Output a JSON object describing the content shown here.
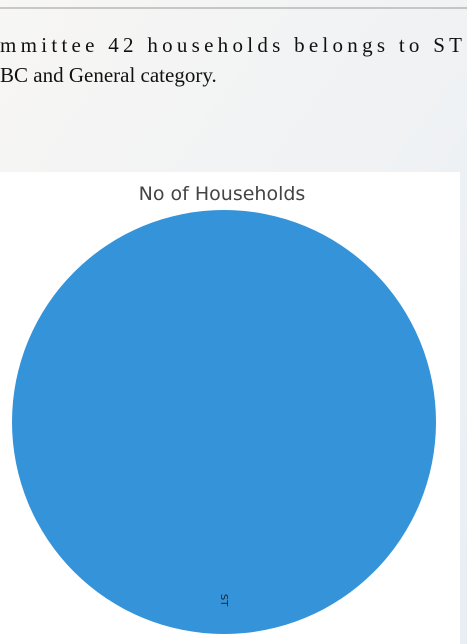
{
  "text_lines": [
    "mmittee 42 households belongs to ST",
    "BC and General category."
  ],
  "chart_data": {
    "type": "pie",
    "title": "No of Households",
    "categories": [
      "ST"
    ],
    "values": [
      42
    ],
    "colors": [
      "#3593d9"
    ]
  }
}
